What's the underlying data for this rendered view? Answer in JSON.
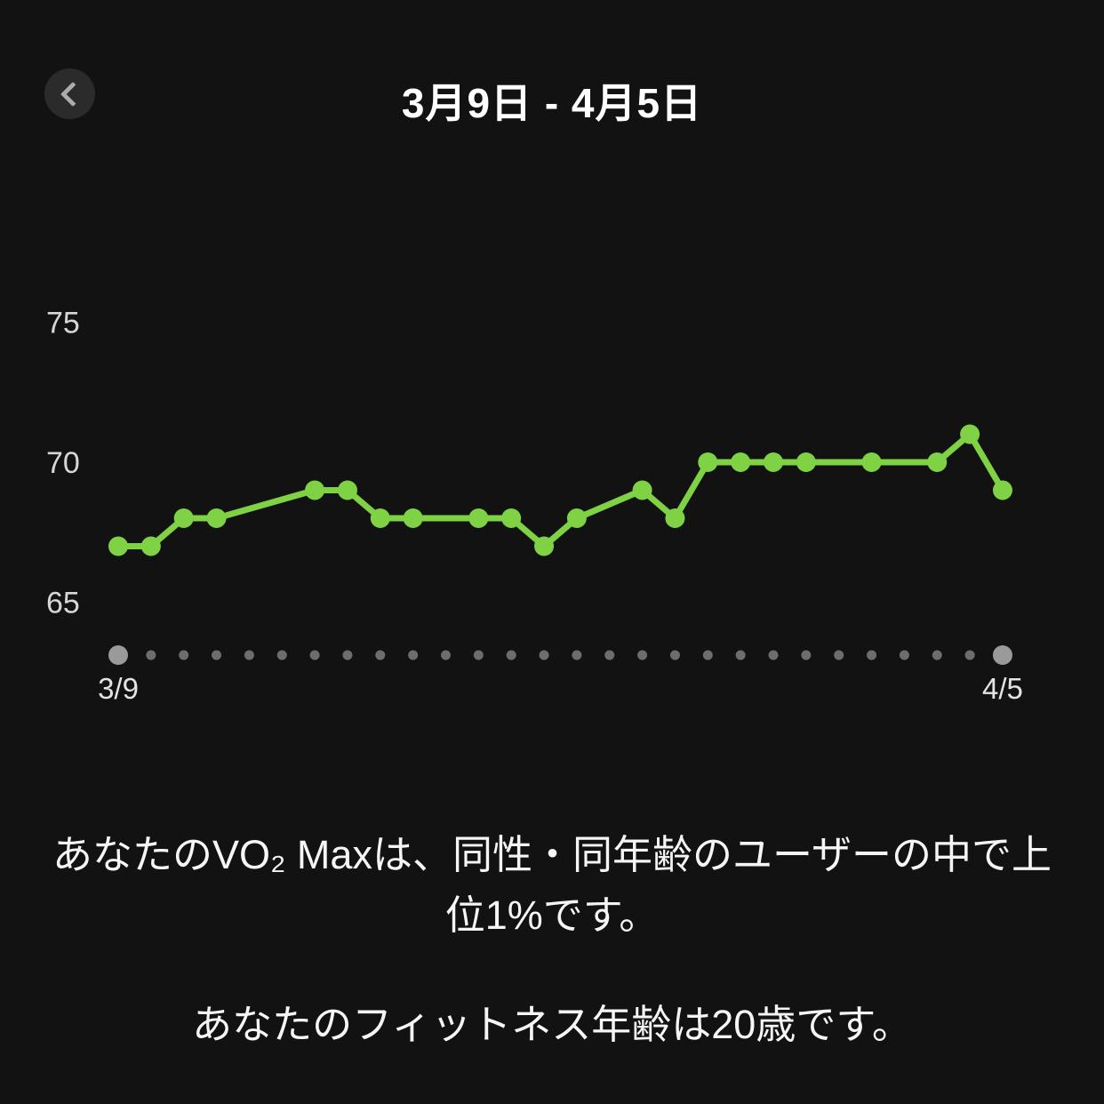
{
  "colors": {
    "background": "#121212",
    "accent_green": "#7ed243",
    "axis_label": "#d6d6d6",
    "timeline_dot": "#6d6d6d",
    "timeline_endpoint": "#9a9a9a",
    "text_primary": "#f5f5f5"
  },
  "header": {
    "title": "3月9日 - 4月5日",
    "back_icon": "chevron-left"
  },
  "chart_data": {
    "type": "line",
    "title": "3月9日 - 4月5日",
    "xlabel": "",
    "ylabel": "",
    "y_ticks": [
      75,
      70,
      65
    ],
    "ylim": [
      63,
      77
    ],
    "x_range_days": 28,
    "x_first_label": "3/9",
    "x_last_label": "4/5",
    "grid": "off",
    "legend": "none",
    "series": [
      {
        "name": "VO2 Max",
        "color": "#7ed243",
        "points": [
          {
            "day": 0,
            "value": 67
          },
          {
            "day": 1,
            "value": 67
          },
          {
            "day": 2,
            "value": 68
          },
          {
            "day": 3,
            "value": 68
          },
          {
            "day": 6,
            "value": 69
          },
          {
            "day": 7,
            "value": 69
          },
          {
            "day": 8,
            "value": 68
          },
          {
            "day": 9,
            "value": 68
          },
          {
            "day": 11,
            "value": 68
          },
          {
            "day": 12,
            "value": 68
          },
          {
            "day": 13,
            "value": 67
          },
          {
            "day": 14,
            "value": 68
          },
          {
            "day": 16,
            "value": 69
          },
          {
            "day": 17,
            "value": 68
          },
          {
            "day": 18,
            "value": 70
          },
          {
            "day": 19,
            "value": 70
          },
          {
            "day": 20,
            "value": 70
          },
          {
            "day": 21,
            "value": 70
          },
          {
            "day": 23,
            "value": 70
          },
          {
            "day": 25,
            "value": 70
          },
          {
            "day": 26,
            "value": 71
          },
          {
            "day": 27,
            "value": 69
          }
        ]
      }
    ]
  },
  "footer": {
    "percentile_text": "あなたのVO₂ Maxは、同性・同年齢のユーザーの中で上位1%です。",
    "fitness_age_text": "あなたのフィットネス年齢は20歳です。"
  }
}
